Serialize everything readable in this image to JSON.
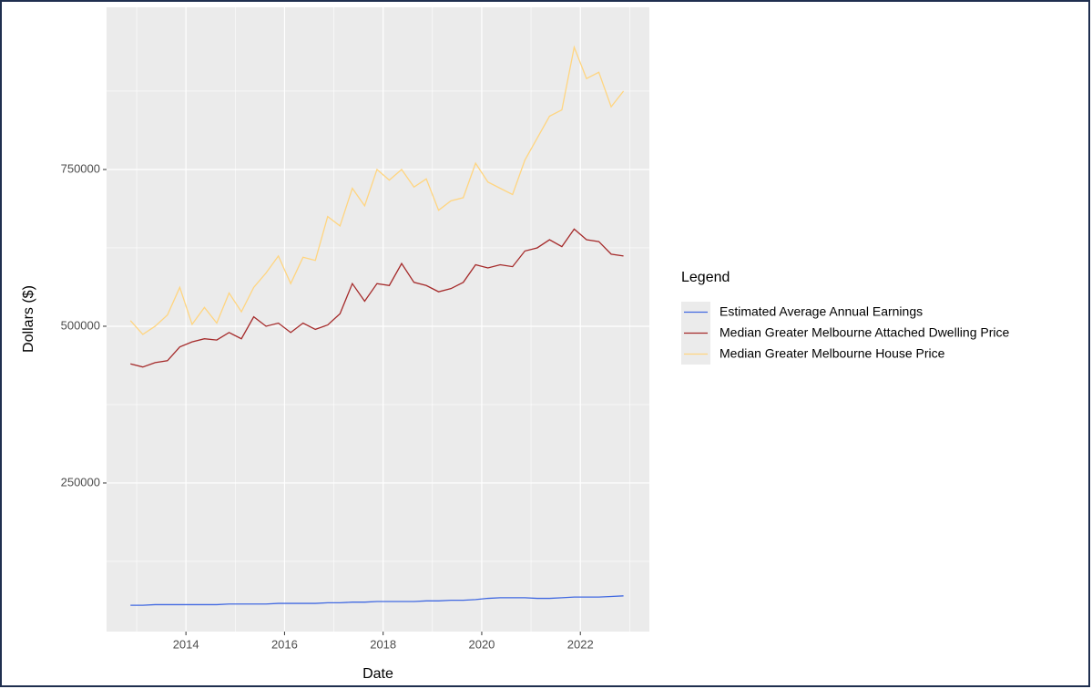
{
  "chart_data": {
    "type": "line",
    "x_label": "Date",
    "y_label": "Dollars ($)",
    "legend_title": "Legend",
    "legend_position": "right",
    "grid": true,
    "x": [
      2012.875,
      2013.125,
      2013.375,
      2013.625,
      2013.875,
      2014.125,
      2014.375,
      2014.625,
      2014.875,
      2015.125,
      2015.375,
      2015.625,
      2015.875,
      2016.125,
      2016.375,
      2016.625,
      2016.875,
      2017.125,
      2017.375,
      2017.625,
      2017.875,
      2018.125,
      2018.375,
      2018.625,
      2018.875,
      2019.125,
      2019.375,
      2019.625,
      2019.875,
      2020.125,
      2020.375,
      2020.625,
      2020.875,
      2021.125,
      2021.375,
      2021.625,
      2021.875,
      2022.125,
      2022.375,
      2022.625,
      2022.875
    ],
    "xlim": [
      2012.39,
      2023.4
    ],
    "xticks": [
      2014,
      2016,
      2018,
      2020,
      2022
    ],
    "ylim": [
      13000,
      1008700
    ],
    "yticks": [
      250000,
      500000,
      750000
    ],
    "series": [
      {
        "name": "Estimated Average Annual Earnings",
        "color": "#4169e1",
        "values": [
          55000,
          55000,
          56000,
          56000,
          56000,
          56000,
          56000,
          56000,
          57000,
          57000,
          57000,
          57000,
          58000,
          58000,
          58000,
          58000,
          59000,
          59000,
          60000,
          60000,
          61000,
          61000,
          61000,
          61000,
          62000,
          62000,
          63000,
          63000,
          64000,
          66000,
          67000,
          67000,
          67000,
          66000,
          66000,
          67000,
          68000,
          68000,
          68000,
          69000,
          70000
        ]
      },
      {
        "name": "Median Greater Melbourne Attached Dwelling Price",
        "color": "#a52a2a",
        "values": [
          440000,
          435000,
          442000,
          445000,
          467000,
          475000,
          480000,
          478000,
          490000,
          480000,
          515000,
          500000,
          505000,
          490000,
          505000,
          495000,
          502000,
          520000,
          568000,
          540000,
          568000,
          565000,
          600000,
          570000,
          565000,
          555000,
          560000,
          570000,
          598000,
          593000,
          598000,
          595000,
          620000,
          625000,
          638000,
          627000,
          655000,
          638000,
          635000,
          615000,
          612000
        ]
      },
      {
        "name": "Median Greater Melbourne House Price",
        "color": "#ffd580",
        "values": [
          509000,
          487000,
          500000,
          518000,
          562000,
          503000,
          530000,
          505000,
          553000,
          523000,
          562000,
          585000,
          612000,
          568000,
          610000,
          605000,
          675000,
          660000,
          720000,
          692000,
          750000,
          733000,
          750000,
          722000,
          735000,
          685000,
          700000,
          705000,
          760000,
          730000,
          720000,
          710000,
          765000,
          800000,
          835000,
          845000,
          945000,
          895000,
          905000,
          850000,
          875000
        ]
      }
    ]
  }
}
